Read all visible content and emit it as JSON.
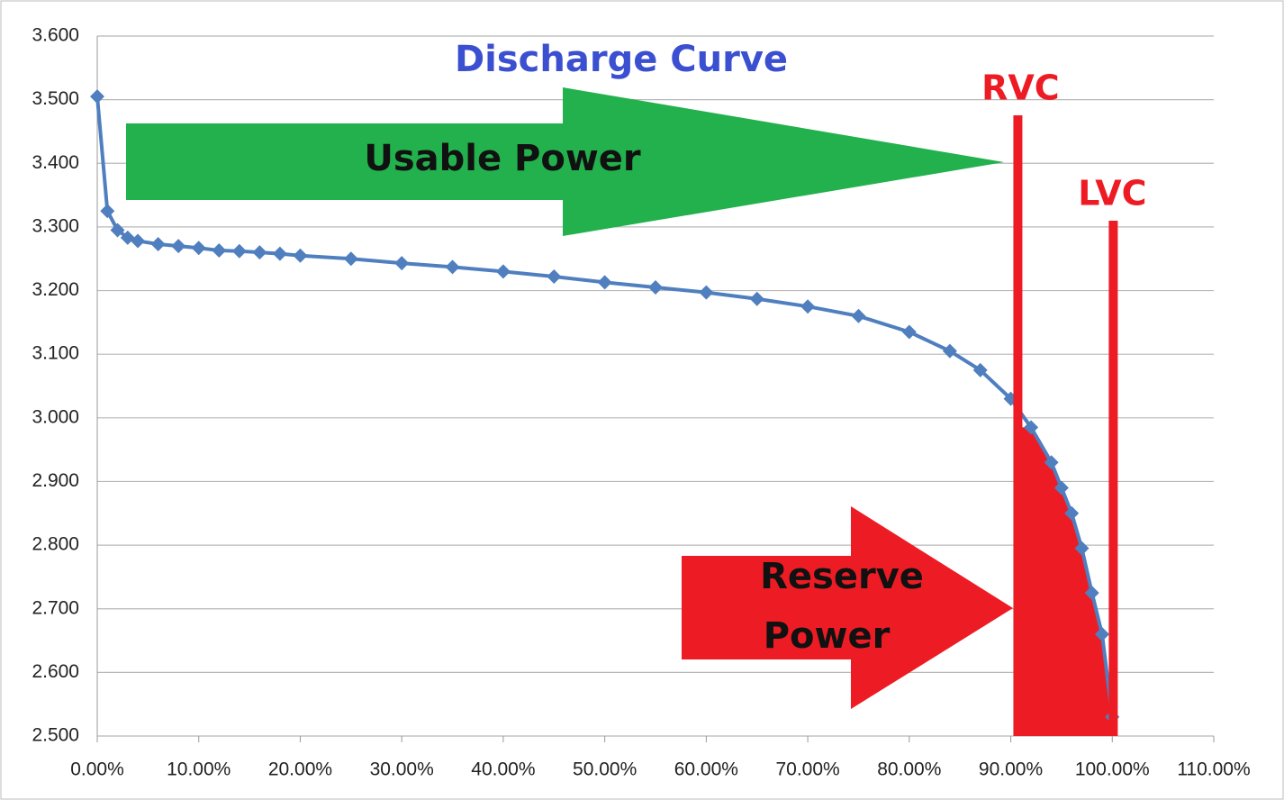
{
  "chart_data": {
    "type": "line",
    "title": "Discharge Curve",
    "x": [
      0,
      1,
      2,
      3,
      4,
      6,
      8,
      10,
      12,
      14,
      16,
      18,
      20,
      25,
      30,
      35,
      40,
      45,
      50,
      55,
      60,
      65,
      70,
      75,
      80,
      84,
      87,
      90,
      92,
      94,
      95,
      96,
      97,
      98,
      99,
      100
    ],
    "series": [
      {
        "color": "#4f7fbf",
        "values": [
          3.505,
          3.325,
          3.295,
          3.283,
          3.278,
          3.273,
          3.27,
          3.267,
          3.263,
          3.262,
          3.26,
          3.258,
          3.255,
          3.25,
          3.243,
          3.237,
          3.23,
          3.222,
          3.213,
          3.205,
          3.197,
          3.187,
          3.175,
          3.16,
          3.135,
          3.105,
          3.075,
          3.03,
          2.985,
          2.93,
          2.89,
          2.85,
          2.795,
          2.725,
          2.66,
          2.53
        ]
      }
    ],
    "xlim": [
      0,
      110
    ],
    "xticks": [
      {
        "value": 0,
        "label": "0.00%"
      },
      {
        "value": 10,
        "label": "10.00%"
      },
      {
        "value": 20,
        "label": "20.00%"
      },
      {
        "value": 30,
        "label": "30.00%"
      },
      {
        "value": 40,
        "label": "40.00%"
      },
      {
        "value": 50,
        "label": "50.00%"
      },
      {
        "value": 60,
        "label": "60.00%"
      },
      {
        "value": 70,
        "label": "70.00%"
      },
      {
        "value": 80,
        "label": "80.00%"
      },
      {
        "value": 90,
        "label": "90.00%"
      },
      {
        "value": 100,
        "label": "100.00%"
      },
      {
        "value": 110,
        "label": "110.00%"
      }
    ],
    "ylim": [
      2.5,
      3.6
    ],
    "yticks": [
      {
        "value": 2.5,
        "label": "2.500"
      },
      {
        "value": 2.6,
        "label": "2.600"
      },
      {
        "value": 2.7,
        "label": "2.700"
      },
      {
        "value": 2.8,
        "label": "2.800"
      },
      {
        "value": 2.9,
        "label": "2.900"
      },
      {
        "value": 3.0,
        "label": "3.000"
      },
      {
        "value": 3.1,
        "label": "3.100"
      },
      {
        "value": 3.2,
        "label": "3.200"
      },
      {
        "value": 3.3,
        "label": "3.300"
      },
      {
        "value": 3.4,
        "label": "3.400"
      },
      {
        "value": 3.5,
        "label": "3.500"
      },
      {
        "value": 3.6,
        "label": "3.600"
      }
    ],
    "grid": true,
    "annotations": {
      "usable": "Usable Power",
      "reserve": [
        "Reserve",
        "Power"
      ],
      "rvc": {
        "label": "RVC",
        "x": 90.7
      },
      "lvc": {
        "label": "LVC",
        "x": 100.1
      },
      "fill_color": "#ed1c24",
      "usable_color": "#22b14c"
    }
  }
}
